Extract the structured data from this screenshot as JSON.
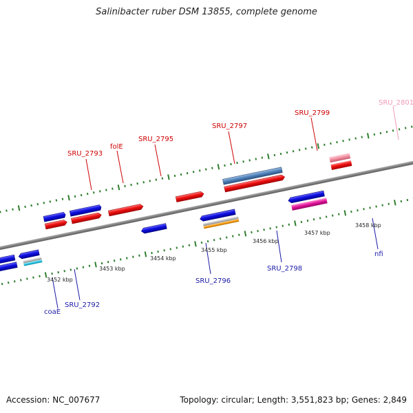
{
  "title": "Salinibacter ruber DSM 13855, complete genome",
  "footer": {
    "accession": "Accession: NC_007677",
    "summary": "Topology: circular; Length: 3,551,823 bp; Genes: 2,849"
  },
  "colors": {
    "forward_label": "#cc0000",
    "reverse_label": "#1a1aa6",
    "pseudo_label": "#f09ab8",
    "backbone": "#808080",
    "tick": "#2e7d2e",
    "blue_gene": "#1010e0",
    "red_gene": "#ee1111",
    "steel_gene": "#4f81b8",
    "gray_gene": "#b8b8b8",
    "orange_gene": "#f39c12",
    "cyan_gene": "#22c4e0",
    "magenta_gene": "#e0149a",
    "pink_gene": "#f08fa0"
  },
  "axis": {
    "unit": "kbp",
    "labels": [
      "3452 kbp",
      "3453 kbp",
      "3454 kbp",
      "3455 kbp",
      "3456 kbp",
      "3457 kbp",
      "3458 kbp"
    ]
  },
  "genes": {
    "forward_labeled": [
      "SRU_2793",
      "folE",
      "SRU_2795",
      "SRU_2797",
      "SRU_2799",
      "SRU_2801"
    ],
    "reverse_labeled": [
      "coaE",
      "SRU_2792",
      "SRU_2796",
      "SRU_2798",
      "nfi"
    ]
  }
}
